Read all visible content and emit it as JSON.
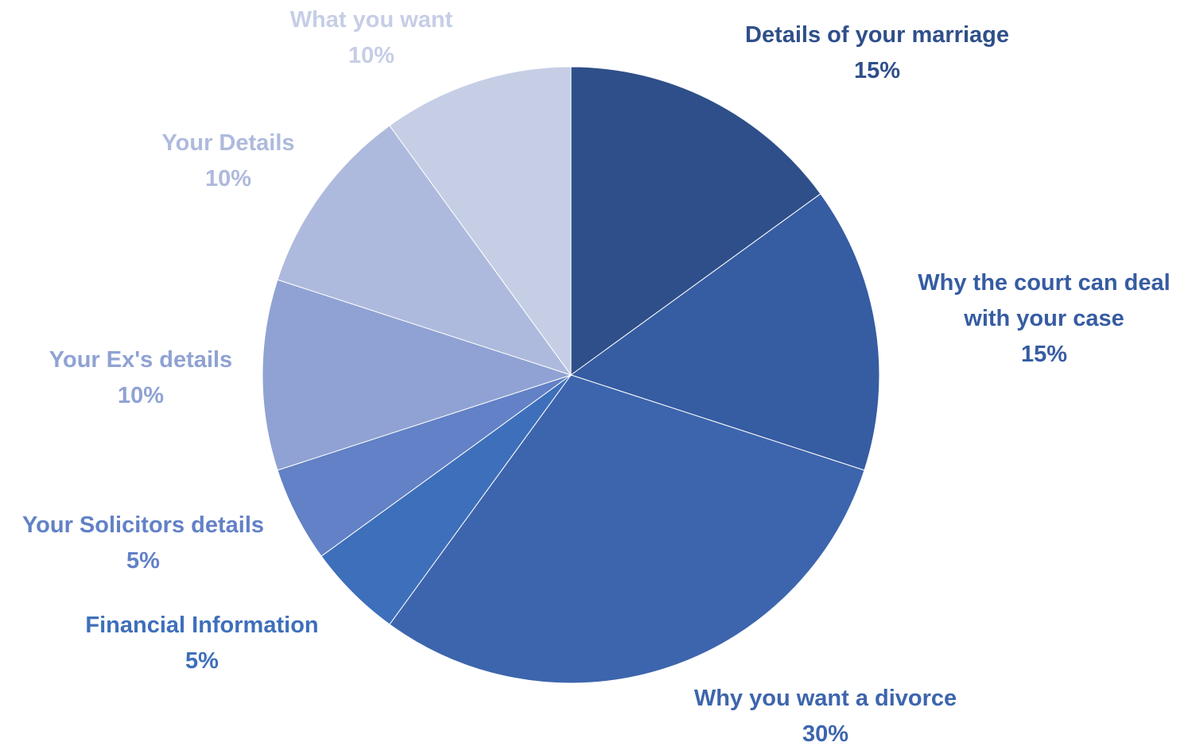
{
  "chart_data": {
    "type": "pie",
    "title": "",
    "slices": [
      {
        "label": "Details of your marriage",
        "label_lines": [
          "Details of your marriage"
        ],
        "value": 15,
        "value_label": "15%",
        "color": "#2F4F8A"
      },
      {
        "label": "Why the court can deal with your case",
        "label_lines": [
          "Why the court can deal",
          "with your case"
        ],
        "value": 15,
        "value_label": "15%",
        "color": "#365CA2"
      },
      {
        "label": "Why you want a divorce",
        "label_lines": [
          "Why you want a divorce"
        ],
        "value": 30,
        "value_label": "30%",
        "color": "#3D65AD"
      },
      {
        "label": "Financial Information",
        "label_lines": [
          "Financial Information"
        ],
        "value": 5,
        "value_label": "5%",
        "color": "#3E6FBB"
      },
      {
        "label": "Your Solicitors details",
        "label_lines": [
          "Your Solicitors details"
        ],
        "value": 5,
        "value_label": "5%",
        "color": "#6281C6"
      },
      {
        "label": "Your Ex's details",
        "label_lines": [
          "Your Ex's details"
        ],
        "value": 10,
        "value_label": "10%",
        "color": "#8FA2D3"
      },
      {
        "label": "Your Details",
        "label_lines": [
          "Your Details"
        ],
        "value": 10,
        "value_label": "10%",
        "color": "#AEBADD"
      },
      {
        "label": "What you want",
        "label_lines": [
          "What you want"
        ],
        "value": 10,
        "value_label": "10%",
        "color": "#C6CEE6"
      }
    ]
  }
}
